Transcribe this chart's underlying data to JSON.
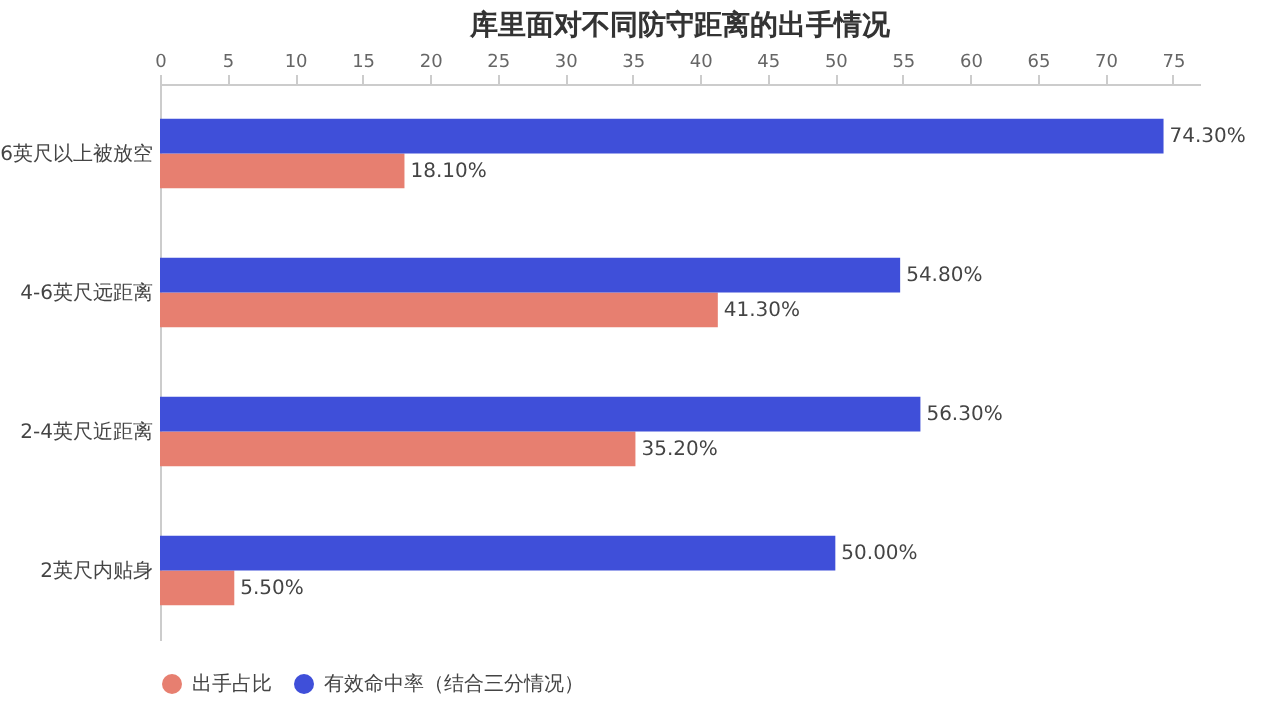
{
  "chart_data": {
    "type": "bar",
    "orientation": "horizontal",
    "title": "库里面对不同防守距离的出手情况",
    "categories": [
      "6英尺以上被放空",
      "4-6英尺远距离",
      "2-4英尺近距离",
      "2英尺内贴身"
    ],
    "series": [
      {
        "name": "出手占比",
        "color": "#e77f70",
        "values": [
          18.1,
          41.3,
          35.2,
          5.5
        ],
        "value_labels": [
          "18.10%",
          "41.30%",
          "35.20%",
          "5.50%"
        ]
      },
      {
        "name": "有效命中率（结合三分情况）",
        "color": "#3f4fd9",
        "values": [
          74.3,
          54.8,
          56.3,
          50.0
        ],
        "value_labels": [
          "74.30%",
          "54.80%",
          "56.30%",
          "50.00%"
        ]
      }
    ],
    "xlim": [
      0,
      77
    ],
    "xticks": [
      0,
      5,
      10,
      15,
      20,
      25,
      30,
      35,
      40,
      45,
      50,
      55,
      60,
      65,
      70,
      75
    ],
    "grid": false,
    "legend": "bottom"
  }
}
